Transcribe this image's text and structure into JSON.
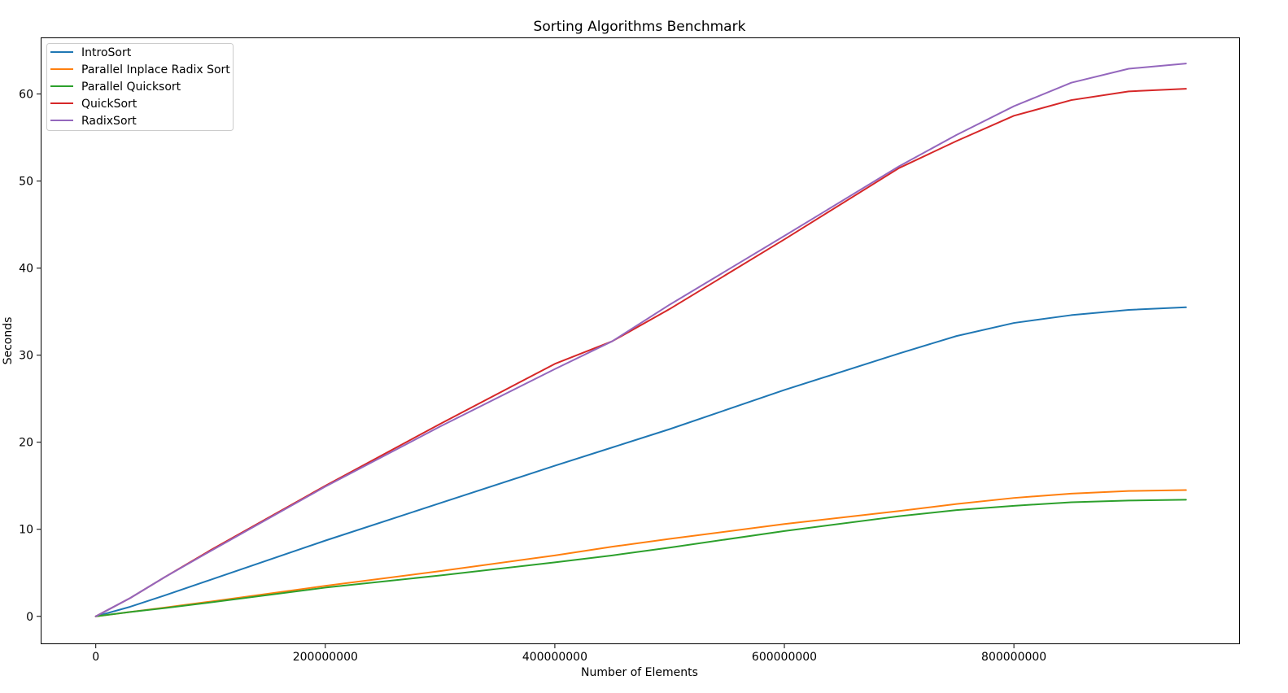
{
  "chart_data": {
    "type": "line",
    "title": "Sorting Algorithms Benchmark",
    "xlabel": "Number of Elements",
    "ylabel": "Seconds",
    "xlim": [
      -48000000,
      997000000
    ],
    "ylim": [
      -3.2,
      66.5
    ],
    "xticks": [
      0,
      200000000,
      400000000,
      600000000,
      800000000
    ],
    "xtick_labels": [
      "0",
      "200000000",
      "400000000",
      "600000000",
      "800000000"
    ],
    "yticks": [
      0,
      10,
      20,
      30,
      40,
      50,
      60
    ],
    "ytick_labels": [
      "0",
      "10",
      "20",
      "30",
      "40",
      "50",
      "60"
    ],
    "grid": false,
    "legend_position": "top-left",
    "x": [
      0,
      30000000,
      60000000,
      100000000,
      200000000,
      300000000,
      400000000,
      450000000,
      500000000,
      600000000,
      700000000,
      750000000,
      800000000,
      850000000,
      900000000,
      950000000
    ],
    "series": [
      {
        "name": "IntroSort",
        "color": "#1f77b4",
        "values": [
          0,
          1.1,
          2.4,
          4.2,
          8.7,
          13.0,
          17.3,
          19.4,
          21.5,
          26.0,
          30.2,
          32.2,
          33.7,
          34.6,
          35.2,
          35.5
        ]
      },
      {
        "name": "Parallel Inplace Radix Sort",
        "color": "#ff7f0e",
        "values": [
          0,
          0.5,
          1.0,
          1.7,
          3.5,
          5.2,
          7.0,
          8.0,
          8.9,
          10.6,
          12.1,
          12.9,
          13.6,
          14.1,
          14.4,
          14.5
        ]
      },
      {
        "name": "Parallel Quicksort",
        "color": "#2ca02c",
        "values": [
          0,
          0.5,
          0.95,
          1.6,
          3.3,
          4.7,
          6.2,
          7.0,
          7.9,
          9.8,
          11.5,
          12.2,
          12.7,
          13.1,
          13.3,
          13.4
        ]
      },
      {
        "name": "QuickSort",
        "color": "#d62728",
        "values": [
          0,
          2.1,
          4.5,
          7.6,
          15.0,
          22.1,
          29.0,
          31.6,
          35.3,
          43.3,
          51.5,
          54.6,
          57.5,
          59.3,
          60.3,
          60.6
        ]
      },
      {
        "name": "RadixSort",
        "color": "#9467bd",
        "values": [
          0,
          2.1,
          4.5,
          7.5,
          14.9,
          21.8,
          28.4,
          31.6,
          35.8,
          43.7,
          51.7,
          55.3,
          58.6,
          61.3,
          62.9,
          63.5
        ]
      }
    ]
  }
}
